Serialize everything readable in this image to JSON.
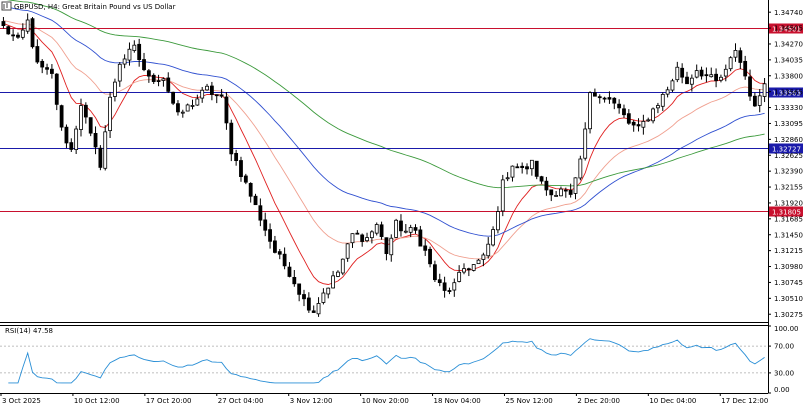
{
  "header": {
    "title": "GBPUSD, H4:  Great Britain Pound vs US Dollar"
  },
  "colors": {
    "bull": "#ffffff",
    "bear": "#000000",
    "ma_red": "#e02020",
    "ma_salmon": "#f0a090",
    "ma_blue": "#3050d0",
    "ma_green": "#3c9a3c",
    "hline_red": "#c8102e",
    "hline_blue": "#1a1aaa",
    "rsi_line": "#2a8fd6",
    "axis_text": "#000000"
  },
  "chart_data": [
    {
      "type": "candlestick",
      "symbol": "GBPUSD",
      "timeframe": "H4",
      "ylim": [
        1.3016,
        1.3492
      ],
      "y_ticks": [
        1.3474,
        1.34505,
        1.3427,
        1.34035,
        1.338,
        1.33565,
        1.3333,
        1.33095,
        1.3286,
        1.32625,
        1.3239,
        1.32155,
        1.3192,
        1.31685,
        1.3145,
        1.31215,
        1.3098,
        1.30745,
        1.3051,
        1.30275
      ],
      "y_tick_labels": [
        "1.34740",
        "1.34505",
        "1.34270",
        "1.34035",
        "1.33800",
        "1.33565",
        "1.33330",
        "1.33095",
        "1.32860",
        "1.32625",
        "1.32390",
        "1.32155",
        "1.31920",
        "1.31685",
        "1.31450",
        "1.31215",
        "1.30980",
        "1.30745",
        "1.30510",
        "1.30275"
      ],
      "x_labels": [
        "3 Oct 2025",
        "10 Oct 12:00",
        "17 Oct 20:00",
        "27 Oct 04:00",
        "3 Nov 12:00",
        "10 Nov 20:00",
        "18 Nov 04:00",
        "25 Nov 12:00",
        "2 Dec 20:00",
        "10 Dec 04:00",
        "17 Dec 12:00"
      ],
      "anchors": [
        [
          0,
          1.3452
        ],
        [
          3,
          1.343
        ],
        [
          5,
          1.346
        ],
        [
          7,
          1.3395
        ],
        [
          10,
          1.338
        ],
        [
          12,
          1.33
        ],
        [
          14,
          1.327
        ],
        [
          16,
          1.334
        ],
        [
          18,
          1.329
        ],
        [
          20,
          1.325
        ],
        [
          22,
          1.3345
        ],
        [
          24,
          1.34
        ],
        [
          27,
          1.342
        ],
        [
          30,
          1.3375
        ],
        [
          33,
          1.3378
        ],
        [
          36,
          1.332
        ],
        [
          39,
          1.334
        ],
        [
          42,
          1.336
        ],
        [
          45,
          1.3345
        ],
        [
          47,
          1.327
        ],
        [
          50,
          1.322
        ],
        [
          53,
          1.317
        ],
        [
          56,
          1.312
        ],
        [
          59,
          1.309
        ],
        [
          62,
          1.3048
        ],
        [
          64,
          1.3033
        ],
        [
          66,
          1.306
        ],
        [
          69,
          1.309
        ],
        [
          72,
          1.3145
        ],
        [
          75,
          1.314
        ],
        [
          77,
          1.316
        ],
        [
          79,
          1.312
        ],
        [
          81,
          1.316
        ],
        [
          83,
          1.315
        ],
        [
          85,
          1.315
        ],
        [
          87,
          1.312
        ],
        [
          89,
          1.308
        ],
        [
          91,
          1.306
        ],
        [
          93,
          1.307
        ],
        [
          95,
          1.3095
        ],
        [
          97,
          1.31
        ],
        [
          99,
          1.311
        ],
        [
          101,
          1.315
        ],
        [
          103,
          1.322
        ],
        [
          105,
          1.325
        ],
        [
          107,
          1.324
        ],
        [
          109,
          1.325
        ],
        [
          111,
          1.322
        ],
        [
          113,
          1.3205
        ],
        [
          115,
          1.3215
        ],
        [
          117,
          1.32
        ],
        [
          119,
          1.325
        ],
        [
          121,
          1.335
        ],
        [
          123,
          1.3355
        ],
        [
          125,
          1.3345
        ],
        [
          127,
          1.333
        ],
        [
          129,
          1.331
        ],
        [
          131,
          1.33
        ],
        [
          133,
          1.332
        ],
        [
          135,
          1.334
        ],
        [
          137,
          1.336
        ],
        [
          139,
          1.339
        ],
        [
          141,
          1.337
        ],
        [
          143,
          1.339
        ],
        [
          145,
          1.338
        ],
        [
          147,
          1.337
        ],
        [
          149,
          1.3385
        ],
        [
          151,
          1.342
        ],
        [
          153,
          1.338
        ],
        [
          155,
          1.333
        ],
        [
          157,
          1.3375
        ]
      ],
      "candle_count": 158,
      "ma_periods": [
        10,
        25,
        50,
        100
      ],
      "hlines": [
        {
          "value": 1.34501,
          "label": "1.34501",
          "kind": "red"
        },
        {
          "value": 1.33563,
          "label": "1.33563",
          "kind": "blue"
        },
        {
          "value": 1.32727,
          "label": "1.32727",
          "kind": "blue"
        },
        {
          "value": 1.31805,
          "label": "1.31805",
          "kind": "red"
        }
      ],
      "grid": false
    },
    {
      "type": "line",
      "indicator": "RSI",
      "period": 14,
      "label": "RSI(14) 47.58",
      "ylim": [
        0,
        100
      ],
      "y_ticks": [
        100.0,
        70.0,
        30.0,
        0.0
      ],
      "y_tick_labels": [
        "100.00",
        "70.00",
        "30.00",
        "0.00"
      ],
      "levels": [
        70,
        30
      ]
    }
  ]
}
